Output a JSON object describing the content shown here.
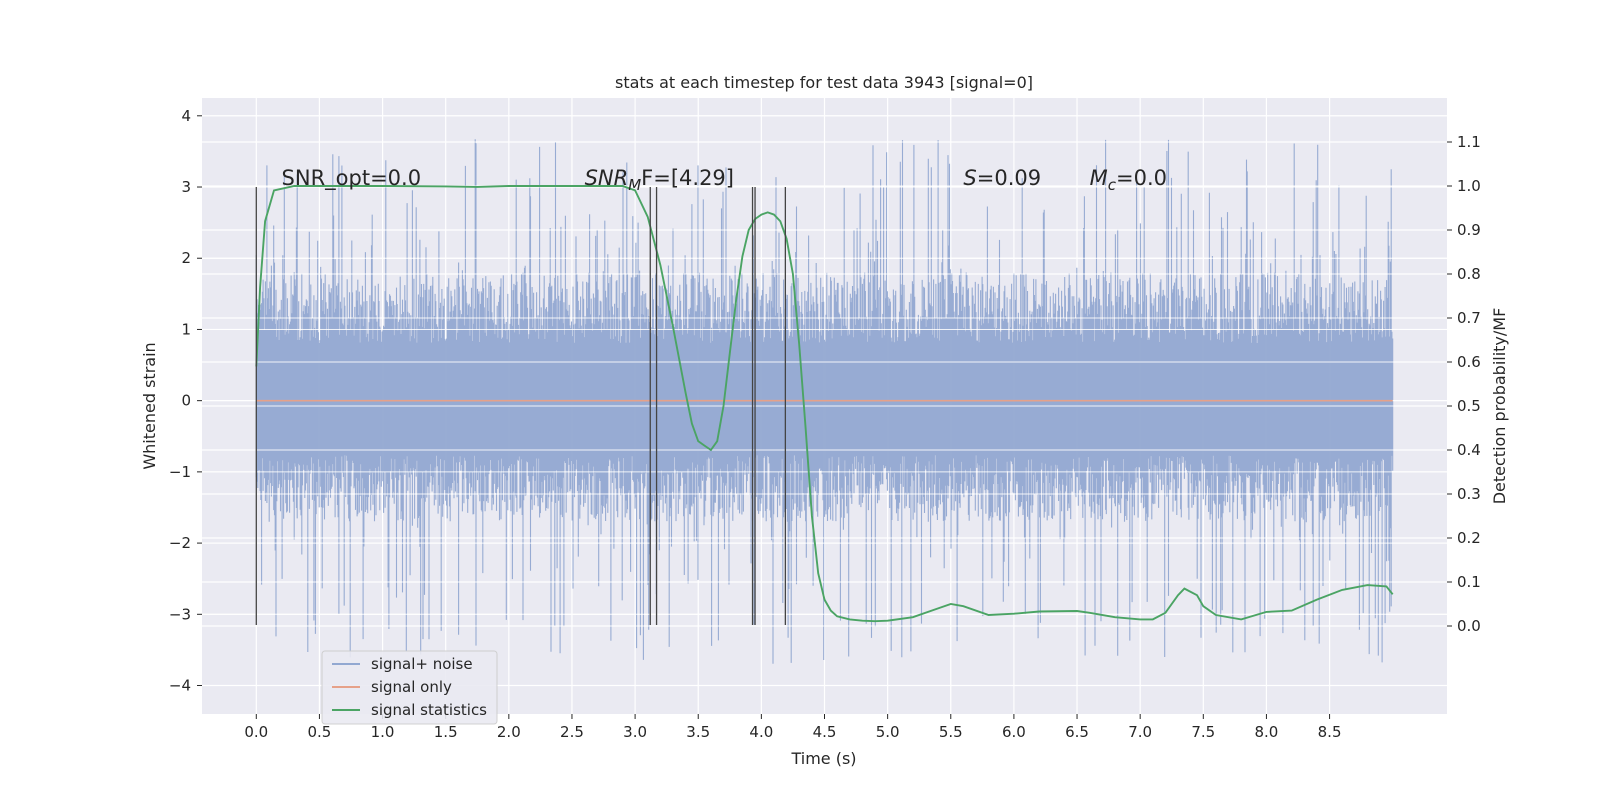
{
  "chart_data": {
    "type": "line",
    "title": "stats at each timestep for test data 3943 [signal=0]",
    "xlabel": "Time (s)",
    "ylabel_left": "Whitened strain",
    "ylabel_right": "Detection probability/MF",
    "xlim": [
      -0.43,
      9.43
    ],
    "ylim_left": [
      -4.4,
      4.25
    ],
    "ylim_right": [
      -0.2,
      1.2
    ],
    "xticks": [
      "0.0",
      "0.5",
      "1.0",
      "1.5",
      "2.0",
      "2.5",
      "3.0",
      "3.5",
      "4.0",
      "4.5",
      "5.0",
      "5.5",
      "6.0",
      "6.5",
      "7.0",
      "7.5",
      "8.0",
      "8.5"
    ],
    "yticks_left": [
      "4",
      "3",
      "2",
      "1",
      "0",
      "−1",
      "−2",
      "−3",
      "−4"
    ],
    "yticks_right": [
      "1.1",
      "1.0",
      "0.9",
      "0.8",
      "0.7",
      "0.6",
      "0.5",
      "0.4",
      "0.3",
      "0.2",
      "0.1",
      "0.0"
    ],
    "grid": true,
    "legend_position": "lower-left",
    "series": [
      {
        "name": "signal+ noise",
        "color": "#92a8d1",
        "axis": "left",
        "x_range": [
          0.0,
          9.0
        ],
        "typical_band": [
          -1.7,
          1.8
        ],
        "peak_max": 3.88,
        "peak_min": -3.94
      },
      {
        "name": "signal only",
        "color": "#e6a189",
        "axis": "left",
        "x": [
          0.0,
          9.0
        ],
        "y": [
          0.0,
          0.0
        ]
      },
      {
        "name": "signal statistics",
        "color": "#4ba464",
        "axis": "right",
        "x": [
          0.0,
          0.03,
          0.07,
          0.14,
          0.3,
          0.6,
          1.0,
          1.5,
          1.75,
          2.0,
          2.5,
          2.9,
          3.0,
          3.1,
          3.2,
          3.3,
          3.4,
          3.45,
          3.5,
          3.55,
          3.6,
          3.65,
          3.7,
          3.75,
          3.8,
          3.85,
          3.9,
          3.95,
          4.0,
          4.05,
          4.1,
          4.15,
          4.2,
          4.25,
          4.3,
          4.35,
          4.4,
          4.45,
          4.5,
          4.55,
          4.6,
          4.7,
          4.8,
          4.9,
          5.0,
          5.2,
          5.4,
          5.5,
          5.6,
          5.8,
          6.0,
          6.2,
          6.5,
          6.6,
          6.8,
          7.0,
          7.1,
          7.2,
          7.3,
          7.35,
          7.45,
          7.5,
          7.6,
          7.8,
          8.0,
          8.2,
          8.4,
          8.6,
          8.8,
          8.95,
          9.0
        ],
        "y": [
          0.59,
          0.77,
          0.92,
          0.99,
          1.0,
          1.0,
          1.0,
          0.999,
          0.998,
          1.0,
          1.0,
          1.0,
          0.99,
          0.93,
          0.82,
          0.68,
          0.53,
          0.46,
          0.42,
          0.41,
          0.4,
          0.42,
          0.5,
          0.62,
          0.74,
          0.84,
          0.9,
          0.925,
          0.935,
          0.94,
          0.935,
          0.92,
          0.88,
          0.8,
          0.64,
          0.45,
          0.25,
          0.12,
          0.06,
          0.035,
          0.022,
          0.015,
          0.012,
          0.011,
          0.012,
          0.02,
          0.04,
          0.05,
          0.045,
          0.025,
          0.028,
          0.033,
          0.034,
          0.03,
          0.02,
          0.015,
          0.015,
          0.03,
          0.07,
          0.085,
          0.07,
          0.045,
          0.025,
          0.015,
          0.032,
          0.035,
          0.06,
          0.082,
          0.093,
          0.09,
          0.072
        ]
      }
    ],
    "event_lines_x": [
      0.0,
      3.12,
      3.17,
      3.93,
      3.95,
      4.19
    ],
    "annotations": [
      {
        "label": "SNR_opt=0.0",
        "x": 0.2,
        "y": 3.0
      },
      {
        "label": "SNR",
        "subscript": "M",
        "suffix": "F=[4.29]",
        "x": 2.6,
        "y": 3.0
      },
      {
        "label": "S",
        "suffix": "=0.09",
        "x": 5.6,
        "y": 3.0
      },
      {
        "label": "M",
        "subscript": "c",
        "suffix": "=0.0",
        "x": 6.6,
        "y": 3.0
      }
    ]
  }
}
